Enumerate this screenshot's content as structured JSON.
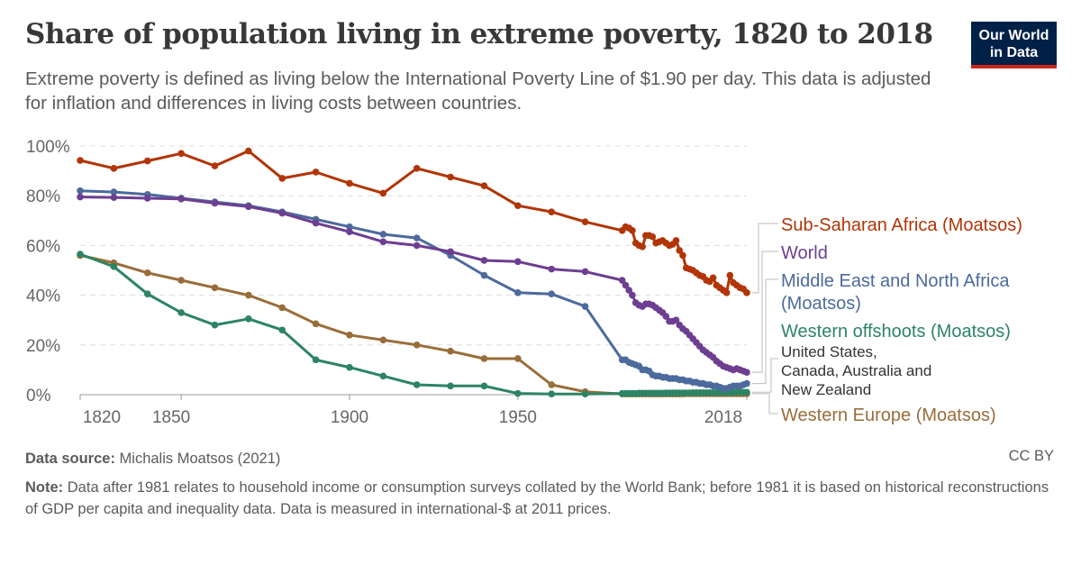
{
  "header": {
    "title": "Share of population living in extreme poverty, 1820 to 2018",
    "subtitle": "Extreme poverty is defined as living below the International Poverty Line of $1.90 per day. This data is adjusted for inflation and differences in living costs between countries.",
    "logo": "Our World in Data"
  },
  "footer": {
    "source_label": "Data source:",
    "source": "Michalis Moatsos (2021)",
    "license": "CC BY",
    "note_label": "Note:",
    "note": "Data after 1981 relates to household income or consumption surveys collated by the World Bank; before 1981 it is based on historical reconstructions of GDP per capita and inequality data. Data is measured in international-$ at 2011 prices."
  },
  "chart_data": {
    "type": "line",
    "title": "Share of population living in extreme poverty, 1820 to 2018",
    "xlim": [
      1820,
      2018
    ],
    "ylim": [
      0,
      100
    ],
    "x_ticks": [
      "1820",
      "1850",
      "1900",
      "1950",
      "2018"
    ],
    "y_ticks": [
      "0%",
      "20%",
      "40%",
      "60%",
      "80%",
      "100%"
    ],
    "grid": "horizontal dashed",
    "legend": "right, end-of-line labels",
    "x": [
      1820,
      1830,
      1840,
      1850,
      1860,
      1870,
      1880,
      1890,
      1900,
      1910,
      1920,
      1930,
      1940,
      1950,
      1960,
      1970,
      1981,
      1982,
      1983,
      1984,
      1985,
      1986,
      1987,
      1988,
      1989,
      1990,
      1991,
      1992,
      1993,
      1994,
      1995,
      1996,
      1997,
      1998,
      1999,
      2000,
      2001,
      2002,
      2003,
      2004,
      2005,
      2006,
      2007,
      2008,
      2009,
      2010,
      2011,
      2012,
      2013,
      2014,
      2015,
      2016,
      2017,
      2018
    ],
    "series": [
      {
        "name": "Sub-Saharan Africa (Moatsos)",
        "color": "#b13507",
        "values": [
          94.2,
          91,
          94,
          97,
          92,
          98,
          87,
          89.5,
          85,
          81,
          91,
          87.5,
          84,
          76,
          73.5,
          69.5,
          66,
          67.5,
          67,
          66,
          61,
          60,
          59.5,
          64,
          64,
          63.5,
          61,
          61.5,
          62,
          61,
          60,
          60.5,
          62,
          58,
          56,
          51,
          50.5,
          50,
          49,
          48,
          47.5,
          46,
          45.5,
          47,
          44,
          43,
          42,
          41,
          48,
          45,
          44,
          43,
          42.5,
          41
        ]
      },
      {
        "name": "World",
        "color": "#6d3e91",
        "values": [
          79.5,
          79.3,
          79,
          78.7,
          77,
          75.6,
          73,
          69,
          65.5,
          61.5,
          60,
          57.5,
          54,
          53.5,
          50.5,
          49.5,
          46,
          44,
          42,
          40,
          37,
          36,
          35.5,
          36.5,
          36.5,
          36,
          35,
          34,
          33,
          31.5,
          29.5,
          29.5,
          30,
          28,
          26.5,
          25.5,
          24,
          22.5,
          21,
          19.5,
          18,
          17,
          16,
          15,
          13.5,
          12.5,
          11.5,
          11,
          10.5,
          10,
          10.5,
          10,
          9.5,
          9
        ]
      },
      {
        "name": "Middle East and North Africa (Moatsos)",
        "color": "#4c6a9c",
        "values": [
          82,
          81.5,
          80.5,
          79,
          77.5,
          76,
          73.5,
          70.5,
          67.5,
          64.5,
          63,
          56,
          48,
          41,
          40.5,
          35.5,
          14,
          14,
          13,
          12.5,
          12,
          11.5,
          10,
          10,
          9.5,
          8,
          7.5,
          7.5,
          7,
          7,
          6.5,
          6.5,
          6.5,
          6,
          6,
          5.5,
          5.5,
          5,
          5,
          4.5,
          4.5,
          4,
          4,
          3.5,
          3.5,
          3,
          2.5,
          2.5,
          3,
          3.5,
          3.5,
          3.5,
          4,
          4.5
        ]
      },
      {
        "name": "Western offshoots (Moatsos)",
        "note": "United States, Canada, Australia and New Zealand",
        "color": "#2c8465",
        "values": [
          56.5,
          51.5,
          40.5,
          33,
          28,
          30.5,
          26,
          14,
          11,
          7.5,
          4,
          3.5,
          3.5,
          0.5,
          0.3,
          0.3,
          0.5,
          0.5,
          0.5,
          0.5,
          0.5,
          0.6,
          0.6,
          0.6,
          0.6,
          0.6,
          0.6,
          0.6,
          0.6,
          0.7,
          0.7,
          0.7,
          0.7,
          0.7,
          0.7,
          0.7,
          0.7,
          0.8,
          0.8,
          0.8,
          0.8,
          0.8,
          0.8,
          0.8,
          0.9,
          0.9,
          0.9,
          0.9,
          0.9,
          0.9,
          1,
          1,
          1,
          1
        ]
      },
      {
        "name": "Western Europe (Moatsos)",
        "color": "#996d39",
        "values": [
          56,
          53,
          49,
          46,
          43,
          40,
          35,
          28.5,
          24,
          22,
          20,
          17.5,
          14.5,
          14.5,
          4,
          1.2,
          0.3,
          0.3,
          0.3,
          0.3,
          0.3,
          0.3,
          0.3,
          0.3,
          0.3,
          0.3,
          0.3,
          0.3,
          0.3,
          0.3,
          0.3,
          0.3,
          0.3,
          0.3,
          0.3,
          0.4,
          0.4,
          0.4,
          0.4,
          0.4,
          0.4,
          0.4,
          0.4,
          0.4,
          0.4,
          0.4,
          0.4,
          0.4,
          0.4,
          0.4,
          0.4,
          0.4,
          0.4,
          0.4
        ]
      }
    ]
  }
}
